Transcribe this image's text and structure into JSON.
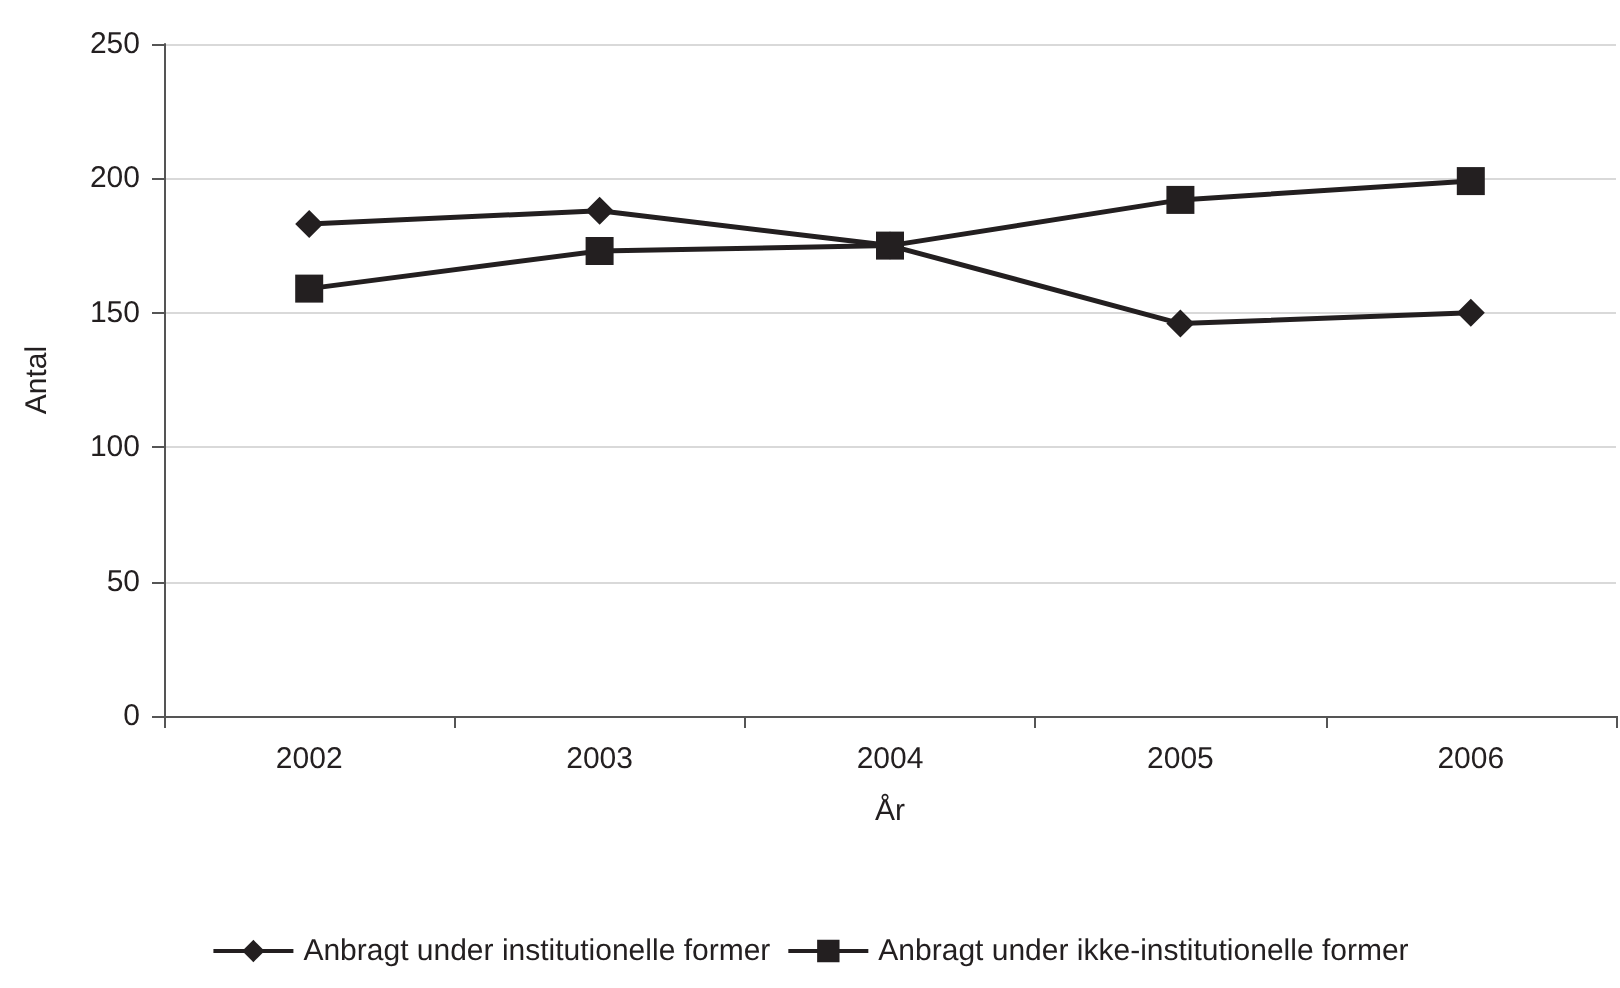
{
  "chart_data": {
    "type": "line",
    "xlabel": "År",
    "ylabel": "Antal",
    "categories": [
      "2002",
      "2003",
      "2004",
      "2005",
      "2006"
    ],
    "series": [
      {
        "name": "Anbragt under institutionelle former",
        "color": "#231f20",
        "marker": "diamond",
        "values": [
          183,
          188,
          175,
          146,
          150
        ]
      },
      {
        "name": "Anbragt under ikke-institutionelle former",
        "color": "#231f20",
        "marker": "square",
        "values": [
          159,
          173,
          175,
          192,
          199
        ]
      }
    ],
    "ylim": [
      0,
      250
    ],
    "yticks": [
      0,
      50,
      100,
      150,
      200,
      250
    ],
    "grid": "y",
    "legend": "bottom",
    "line_style": "solid"
  }
}
